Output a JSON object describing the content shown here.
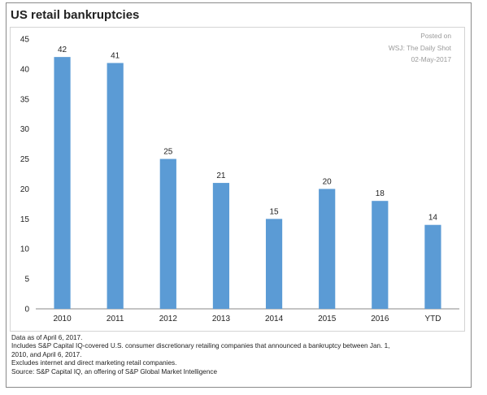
{
  "chart_data": {
    "type": "bar",
    "title": "US retail bankruptcies",
    "categories": [
      "2010",
      "2011",
      "2012",
      "2013",
      "2014",
      "2015",
      "2016",
      "YTD"
    ],
    "values": [
      42,
      41,
      25,
      21,
      15,
      20,
      18,
      14
    ],
    "data_labels": [
      "42",
      "41",
      "25",
      "21",
      "15",
      "20",
      "18",
      "14"
    ],
    "yticks": [
      "0",
      "5",
      "10",
      "15",
      "20",
      "25",
      "30",
      "35",
      "40",
      "45"
    ],
    "ylim": [
      0,
      45
    ],
    "xlabel": "",
    "ylabel": "",
    "grid": false,
    "bar_color": "#5b9bd5"
  },
  "posted": {
    "line1": "Posted on",
    "line2": "WSJ: The Daily Shot",
    "line3": "02-May-2017"
  },
  "notes": [
    "Data as of April 6, 2017.",
    "Includes S&P Capital IQ-covered U.S. consumer discretionary retailing companies that announced a bankruptcy between Jan. 1,",
    "2010, and April 6, 2017.",
    "Excludes internet and direct marketing retail companies.",
    "Source: S&P Capital IQ, an offering of S&P Global Market Intelligence"
  ]
}
